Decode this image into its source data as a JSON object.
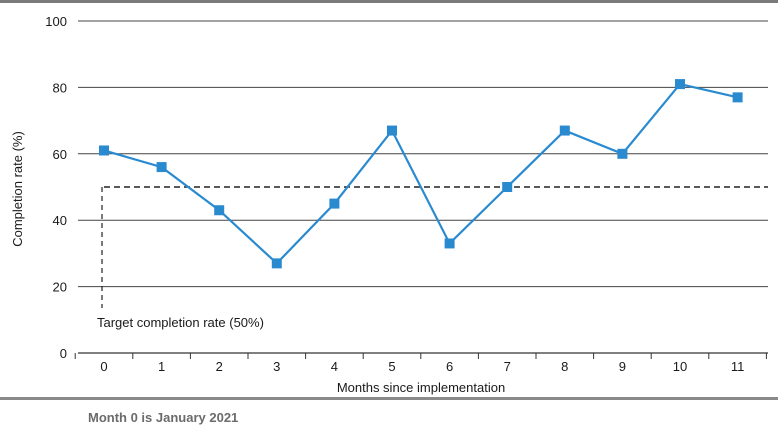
{
  "chart_data": {
    "type": "line",
    "xlabel": "Months since implementation",
    "ylabel": "Completion rate (%)",
    "x": [
      0,
      1,
      2,
      3,
      4,
      5,
      6,
      7,
      8,
      9,
      10,
      11
    ],
    "series": [
      {
        "values": [
          61,
          56,
          43,
          27,
          45,
          67,
          33,
          50,
          67,
          60,
          81,
          77
        ]
      }
    ],
    "ylim": [
      0,
      100
    ],
    "yticks": [
      0,
      20,
      40,
      60,
      80,
      100
    ],
    "grid": "horizontal",
    "target": {
      "value": 50,
      "label": "Target completion rate (50%)"
    },
    "colors": {
      "series": "#2a8ad0",
      "grid": "#444444",
      "target": "#222222"
    }
  },
  "note": "Month 0 is January 2021"
}
